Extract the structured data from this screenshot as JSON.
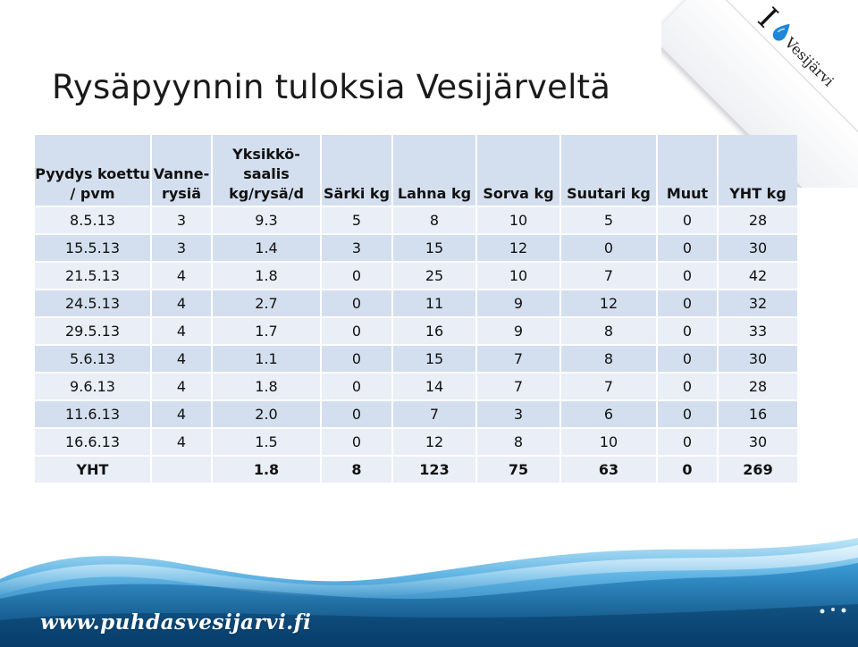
{
  "slide": {
    "title": "Rysäpyynnin tuloksia Vesijärveltä",
    "logo": {
      "letter": "I",
      "icon": "water-drop-icon",
      "text": "Vesijärvi"
    },
    "footer_url": "www.puhdasvesijarvi.fi"
  },
  "table": {
    "headers": [
      [
        "Pyydys koettu",
        "/ pvm"
      ],
      [
        "Vanne-",
        "rysiä"
      ],
      [
        "Yksikkö-",
        "saalis",
        "kg/rysä/d"
      ],
      [
        "Särki kg"
      ],
      [
        "Lahna kg"
      ],
      [
        "Sorva kg"
      ],
      [
        "Suutari kg"
      ],
      [
        "Muut"
      ],
      [
        "YHT kg"
      ]
    ],
    "rows": [
      [
        "8.5.13",
        "3",
        "9.3",
        "5",
        "8",
        "10",
        "5",
        "0",
        "28"
      ],
      [
        "15.5.13",
        "3",
        "1.4",
        "3",
        "15",
        "12",
        "0",
        "0",
        "30"
      ],
      [
        "21.5.13",
        "4",
        "1.8",
        "0",
        "25",
        "10",
        "7",
        "0",
        "42"
      ],
      [
        "24.5.13",
        "4",
        "2.7",
        "0",
        "11",
        "9",
        "12",
        "0",
        "32"
      ],
      [
        "29.5.13",
        "4",
        "1.7",
        "0",
        "16",
        "9",
        "8",
        "0",
        "33"
      ],
      [
        "5.6.13",
        "4",
        "1.1",
        "0",
        "15",
        "7",
        "8",
        "0",
        "30"
      ],
      [
        "9.6.13",
        "4",
        "1.8",
        "0",
        "14",
        "7",
        "7",
        "0",
        "28"
      ],
      [
        "11.6.13",
        "4",
        "2.0",
        "0",
        "7",
        "3",
        "6",
        "0",
        "16"
      ],
      [
        "16.6.13",
        "4",
        "1.5",
        "0",
        "12",
        "8",
        "10",
        "0",
        "30"
      ]
    ],
    "total": [
      "YHT",
      "",
      "1.8",
      "8",
      "123",
      "75",
      "63",
      "0",
      "269"
    ]
  },
  "colors": {
    "header_bg": "#d3dfee",
    "row_light": "#e9eef7",
    "row_dark": "#d3dfee",
    "water_deep": "#0b4f8a",
    "water_light": "#7cc6ec",
    "drop": "#1e88d6"
  }
}
